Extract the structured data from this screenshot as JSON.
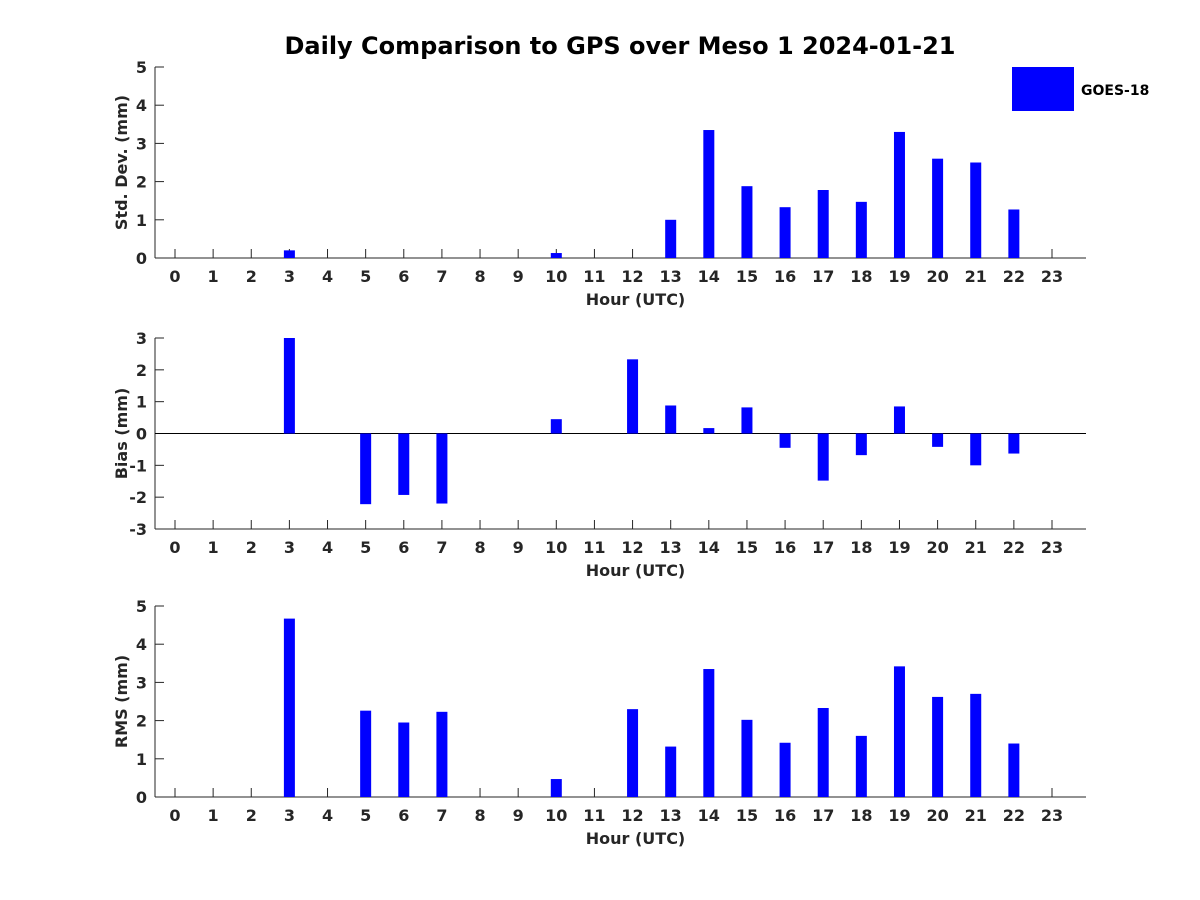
{
  "title": "Daily Comparison to GPS over Meso 1 2024-01-21",
  "legend": {
    "label": "GOES-18",
    "color": "#0000FF",
    "placement": "top-right"
  },
  "chart_data": [
    {
      "type": "bar",
      "name": "std_dev",
      "ylabel": "Std. Dev. (mm)",
      "xlabel": "Hour (UTC)",
      "ylim": [
        0,
        5
      ],
      "yticks": [
        0,
        1,
        2,
        3,
        4,
        5
      ],
      "categories": [
        0,
        1,
        2,
        3,
        4,
        5,
        6,
        7,
        8,
        9,
        10,
        11,
        12,
        13,
        14,
        15,
        16,
        17,
        18,
        19,
        20,
        21,
        22,
        23
      ],
      "series": [
        {
          "name": "GOES-18",
          "values": [
            null,
            null,
            null,
            0.2,
            null,
            null,
            null,
            null,
            null,
            null,
            0.13,
            null,
            null,
            1.0,
            3.35,
            1.88,
            1.33,
            1.78,
            1.47,
            3.3,
            2.6,
            2.5,
            1.27,
            null
          ]
        }
      ]
    },
    {
      "type": "bar",
      "name": "bias",
      "ylabel": "Bias (mm)",
      "xlabel": "Hour (UTC)",
      "ylim": [
        -3,
        3
      ],
      "yticks": [
        -3,
        -2,
        -1,
        0,
        1,
        2,
        3
      ],
      "zero_line": true,
      "categories": [
        0,
        1,
        2,
        3,
        4,
        5,
        6,
        7,
        8,
        9,
        10,
        11,
        12,
        13,
        14,
        15,
        16,
        17,
        18,
        19,
        20,
        21,
        22,
        23
      ],
      "series": [
        {
          "name": "GOES-18",
          "values": [
            null,
            null,
            null,
            3.0,
            null,
            -2.22,
            -1.93,
            -2.2,
            null,
            null,
            0.45,
            null,
            2.33,
            0.88,
            0.17,
            0.82,
            -0.45,
            -1.48,
            -0.68,
            0.85,
            -0.42,
            -1.0,
            -0.63,
            null
          ]
        }
      ]
    },
    {
      "type": "bar",
      "name": "rms",
      "ylabel": "RMS (mm)",
      "xlabel": "Hour (UTC)",
      "ylim": [
        0,
        5
      ],
      "yticks": [
        0,
        1,
        2,
        3,
        4,
        5
      ],
      "categories": [
        0,
        1,
        2,
        3,
        4,
        5,
        6,
        7,
        8,
        9,
        10,
        11,
        12,
        13,
        14,
        15,
        16,
        17,
        18,
        19,
        20,
        21,
        22,
        23
      ],
      "series": [
        {
          "name": "GOES-18",
          "values": [
            null,
            null,
            null,
            4.67,
            null,
            2.26,
            1.95,
            2.23,
            null,
            null,
            0.47,
            null,
            2.3,
            1.32,
            3.35,
            2.02,
            1.42,
            2.33,
            1.6,
            3.42,
            2.62,
            2.7,
            1.4,
            null
          ]
        }
      ]
    }
  ]
}
